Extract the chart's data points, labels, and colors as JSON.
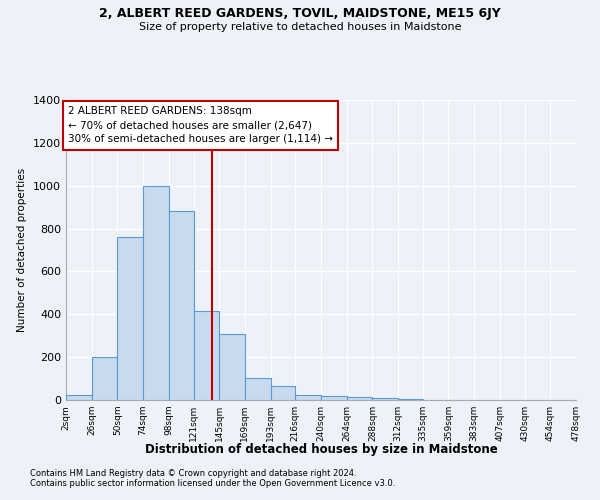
{
  "title": "2, ALBERT REED GARDENS, TOVIL, MAIDSTONE, ME15 6JY",
  "subtitle": "Size of property relative to detached houses in Maidstone",
  "xlabel": "Distribution of detached houses by size in Maidstone",
  "ylabel": "Number of detached properties",
  "footnote1": "Contains HM Land Registry data © Crown copyright and database right 2024.",
  "footnote2": "Contains public sector information licensed under the Open Government Licence v3.0.",
  "annotation_line1": "2 ALBERT REED GARDENS: 138sqm",
  "annotation_line2": "← 70% of detached houses are smaller (2,647)",
  "annotation_line3": "30% of semi-detached houses are larger (1,114) →",
  "property_size": 138,
  "bin_edges": [
    2,
    26,
    50,
    74,
    98,
    121,
    145,
    169,
    193,
    216,
    240,
    264,
    288,
    312,
    335,
    359,
    383,
    407,
    430,
    454,
    478
  ],
  "bar_heights": [
    25,
    200,
    760,
    1000,
    880,
    415,
    310,
    105,
    65,
    25,
    20,
    12,
    8,
    4,
    2,
    1,
    1,
    1,
    0,
    0
  ],
  "bar_color": "#c9d9ee",
  "bar_edge_color": "#5b9bd5",
  "vline_color": "#c00000",
  "background_color": "#eef2f8",
  "grid_color": "#ffffff",
  "annotation_box_color": "#ffffff",
  "annotation_box_edge": "#c00000",
  "ylim": [
    0,
    1400
  ],
  "yticks": [
    0,
    200,
    400,
    600,
    800,
    1000,
    1200,
    1400
  ],
  "xtick_labels": [
    "2sqm",
    "26sqm",
    "50sqm",
    "74sqm",
    "98sqm",
    "121sqm",
    "145sqm",
    "169sqm",
    "193sqm",
    "216sqm",
    "240sqm",
    "264sqm",
    "288sqm",
    "312sqm",
    "335sqm",
    "359sqm",
    "383sqm",
    "407sqm",
    "430sqm",
    "454sqm",
    "478sqm"
  ]
}
